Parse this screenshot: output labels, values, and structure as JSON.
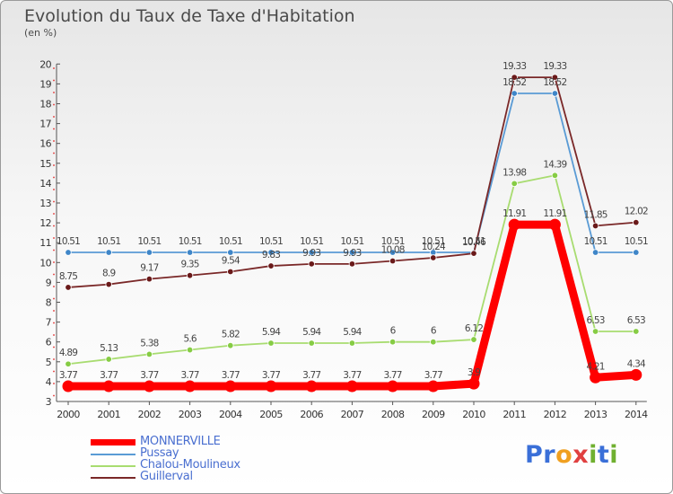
{
  "header": {
    "title": "Evolution du Taux de Taxe d'Habitation",
    "subtitle": "(en %)"
  },
  "logo": {
    "text": "Proxiti",
    "letters": [
      {
        "ch": "P",
        "color": "#3a6fd8"
      },
      {
        "ch": "r",
        "color": "#3a6fd8"
      },
      {
        "ch": "o",
        "color": "#f0a020"
      },
      {
        "ch": "x",
        "color": "#e04040"
      },
      {
        "ch": "i",
        "color": "#70b030"
      },
      {
        "ch": "t",
        "color": "#3a6fd8"
      },
      {
        "ch": "i",
        "color": "#70b030"
      }
    ]
  },
  "chart_data": {
    "type": "line",
    "title": "Evolution du Taux de Taxe d'Habitation",
    "subtitle": "(en %)",
    "xlabel": "",
    "ylabel": "",
    "x": [
      "2000",
      "2001",
      "2002",
      "2003",
      "2004",
      "2005",
      "2006",
      "2007",
      "2008",
      "2009",
      "2010",
      "2011",
      "2012",
      "2013",
      "2014"
    ],
    "ylim": [
      3,
      20
    ],
    "yticks": [
      "3",
      "4",
      "5",
      "6",
      "7",
      "8",
      "9",
      "10",
      "11",
      "12",
      "13",
      "14",
      "15",
      "16",
      "17",
      "18",
      "19",
      "20"
    ],
    "grid": false,
    "legend_position": "bottom-left",
    "series": [
      {
        "name": "MONNERVILLE",
        "color": "#ff0000",
        "marker": "#ff0000",
        "thick": true,
        "values": [
          3.77,
          3.77,
          3.77,
          3.77,
          3.77,
          3.77,
          3.77,
          3.77,
          3.77,
          3.77,
          3.9,
          11.91,
          11.91,
          4.21,
          4.34
        ],
        "labels": [
          "3.77",
          "3.77",
          "3.77",
          "3.77",
          "3.77",
          "3.77",
          "3.77",
          "3.77",
          "3.77",
          "3.77",
          "3.9",
          "11.91",
          "11.91",
          "4.21",
          "4.34"
        ]
      },
      {
        "name": "Pussay",
        "color": "#5a9bd5",
        "marker": "#3f86c8",
        "thick": false,
        "values": [
          10.51,
          10.51,
          10.51,
          10.51,
          10.51,
          10.51,
          10.51,
          10.51,
          10.51,
          10.51,
          10.51,
          18.52,
          18.52,
          10.51,
          10.51
        ],
        "labels": [
          "10.51",
          "10.51",
          "10.51",
          "10.51",
          "10.51",
          "10.51",
          "10.51",
          "10.51",
          "10.51",
          "10.51",
          "10.51",
          "18.52",
          "18.52",
          "10.51",
          "10.51"
        ]
      },
      {
        "name": "Chalou-Moulineux",
        "color": "#a8dc70",
        "marker": "#86cc44",
        "thick": false,
        "values": [
          4.89,
          5.13,
          5.38,
          5.6,
          5.82,
          5.94,
          5.94,
          5.94,
          6.0,
          6.0,
          6.12,
          13.98,
          14.39,
          6.53,
          6.53
        ],
        "labels": [
          "4.89",
          "5.13",
          "5.38",
          "5.6",
          "5.82",
          "5.94",
          "5.94",
          "5.94",
          "6",
          "6",
          "6.12",
          "13.98",
          "14.39",
          "6.53",
          "6.53"
        ]
      },
      {
        "name": "Guillerval",
        "color": "#7a2828",
        "marker": "#6a1a1a",
        "thick": false,
        "values": [
          8.75,
          8.9,
          9.17,
          9.35,
          9.54,
          9.83,
          9.93,
          9.93,
          10.08,
          10.24,
          10.46,
          19.33,
          19.33,
          11.85,
          12.02
        ],
        "labels": [
          "8.75",
          "8.9",
          "9.17",
          "9.35",
          "9.54",
          "9.83",
          "9.93",
          "9.93",
          "10.08",
          "10.24",
          "10.46",
          "19.33",
          "19.33",
          "11.85",
          "12.02"
        ]
      }
    ]
  }
}
